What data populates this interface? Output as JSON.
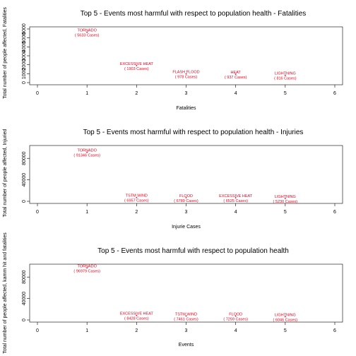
{
  "chart_data": [
    {
      "type": "scatter",
      "title": "Top 5 - Events most harmful with respect to population health - Fatalities",
      "xlabel": "Fatalities",
      "ylabel": "Total number of people affected, Fatalities",
      "xlim": [
        0,
        6
      ],
      "ylim": [
        0,
        6000
      ],
      "xticks": [
        "0",
        "1",
        "2",
        "3",
        "4",
        "5",
        "6"
      ],
      "yticks": [
        "0",
        "1000",
        "2000",
        "3000",
        "4000",
        "5000",
        "6000"
      ],
      "point_color": "#e8001c",
      "points": [
        {
          "x": 1,
          "y": 5633,
          "label": "TORNADO",
          "cases": "( 5633  Cases)"
        },
        {
          "x": 2,
          "y": 1903,
          "label": "EXCESSIVE HEAT",
          "cases": "( 1903  Cases)"
        },
        {
          "x": 3,
          "y": 978,
          "label": "FLASH FLOOD",
          "cases": "( 978  Cases)"
        },
        {
          "x": 4,
          "y": 937,
          "label": "HEAT",
          "cases": "( 937  Cases)"
        },
        {
          "x": 5,
          "y": 816,
          "label": "LIGHTNING",
          "cases": "( 816  Cases)"
        }
      ]
    },
    {
      "type": "scatter",
      "title": "Top 5 - Events most harmful with respect to population health - Injuries",
      "xlabel": "Injurie Cases",
      "ylabel": "Total number of people affected, Injuried",
      "xlim": [
        0,
        6
      ],
      "ylim": [
        0,
        100000
      ],
      "xticks": [
        "0",
        "1",
        "2",
        "3",
        "4",
        "5",
        "6"
      ],
      "yticks": [
        "0",
        "40000",
        "80000"
      ],
      "point_color": "#e8001c",
      "points": [
        {
          "x": 1,
          "y": 91346,
          "label": "TORNADO",
          "cases": "( 91346  Cases)"
        },
        {
          "x": 2,
          "y": 6957,
          "label": "TSTM WIND",
          "cases": "( 6957  Cases)"
        },
        {
          "x": 3,
          "y": 6789,
          "label": "FLOOD",
          "cases": "( 6789  Cases)"
        },
        {
          "x": 4,
          "y": 6525,
          "label": "EXCESSIVE HEAT",
          "cases": "( 6525  Cases)"
        },
        {
          "x": 5,
          "y": 5230,
          "label": "LIGHTNING",
          "cases": "( 5230  Cases)"
        }
      ]
    },
    {
      "type": "scatter",
      "title": "Top 5 - Events most harmful with respect to population health",
      "xlabel": "Events",
      "ylabel": "Total number of people affected, kamm hit and fatalities",
      "xlim": [
        0,
        6
      ],
      "ylim": [
        0,
        100000
      ],
      "xticks": [
        "0",
        "1",
        "2",
        "3",
        "4",
        "5",
        "6"
      ],
      "yticks": [
        "0",
        "40000",
        "80000"
      ],
      "point_color": "#e8001c",
      "points": [
        {
          "x": 1,
          "y": 96979,
          "label": "TORNADO",
          "cases": "( 96979  Cases)"
        },
        {
          "x": 2,
          "y": 8428,
          "label": "EXCESSIVE HEAT",
          "cases": "( 8428  Cases)"
        },
        {
          "x": 3,
          "y": 7461,
          "label": "TSTM WIND",
          "cases": "( 7461  Cases)"
        },
        {
          "x": 4,
          "y": 7259,
          "label": "FLOOD",
          "cases": "( 7259  Cases)"
        },
        {
          "x": 5,
          "y": 6046,
          "label": "LIGHTNING",
          "cases": "( 6046  Cases)"
        }
      ]
    }
  ]
}
